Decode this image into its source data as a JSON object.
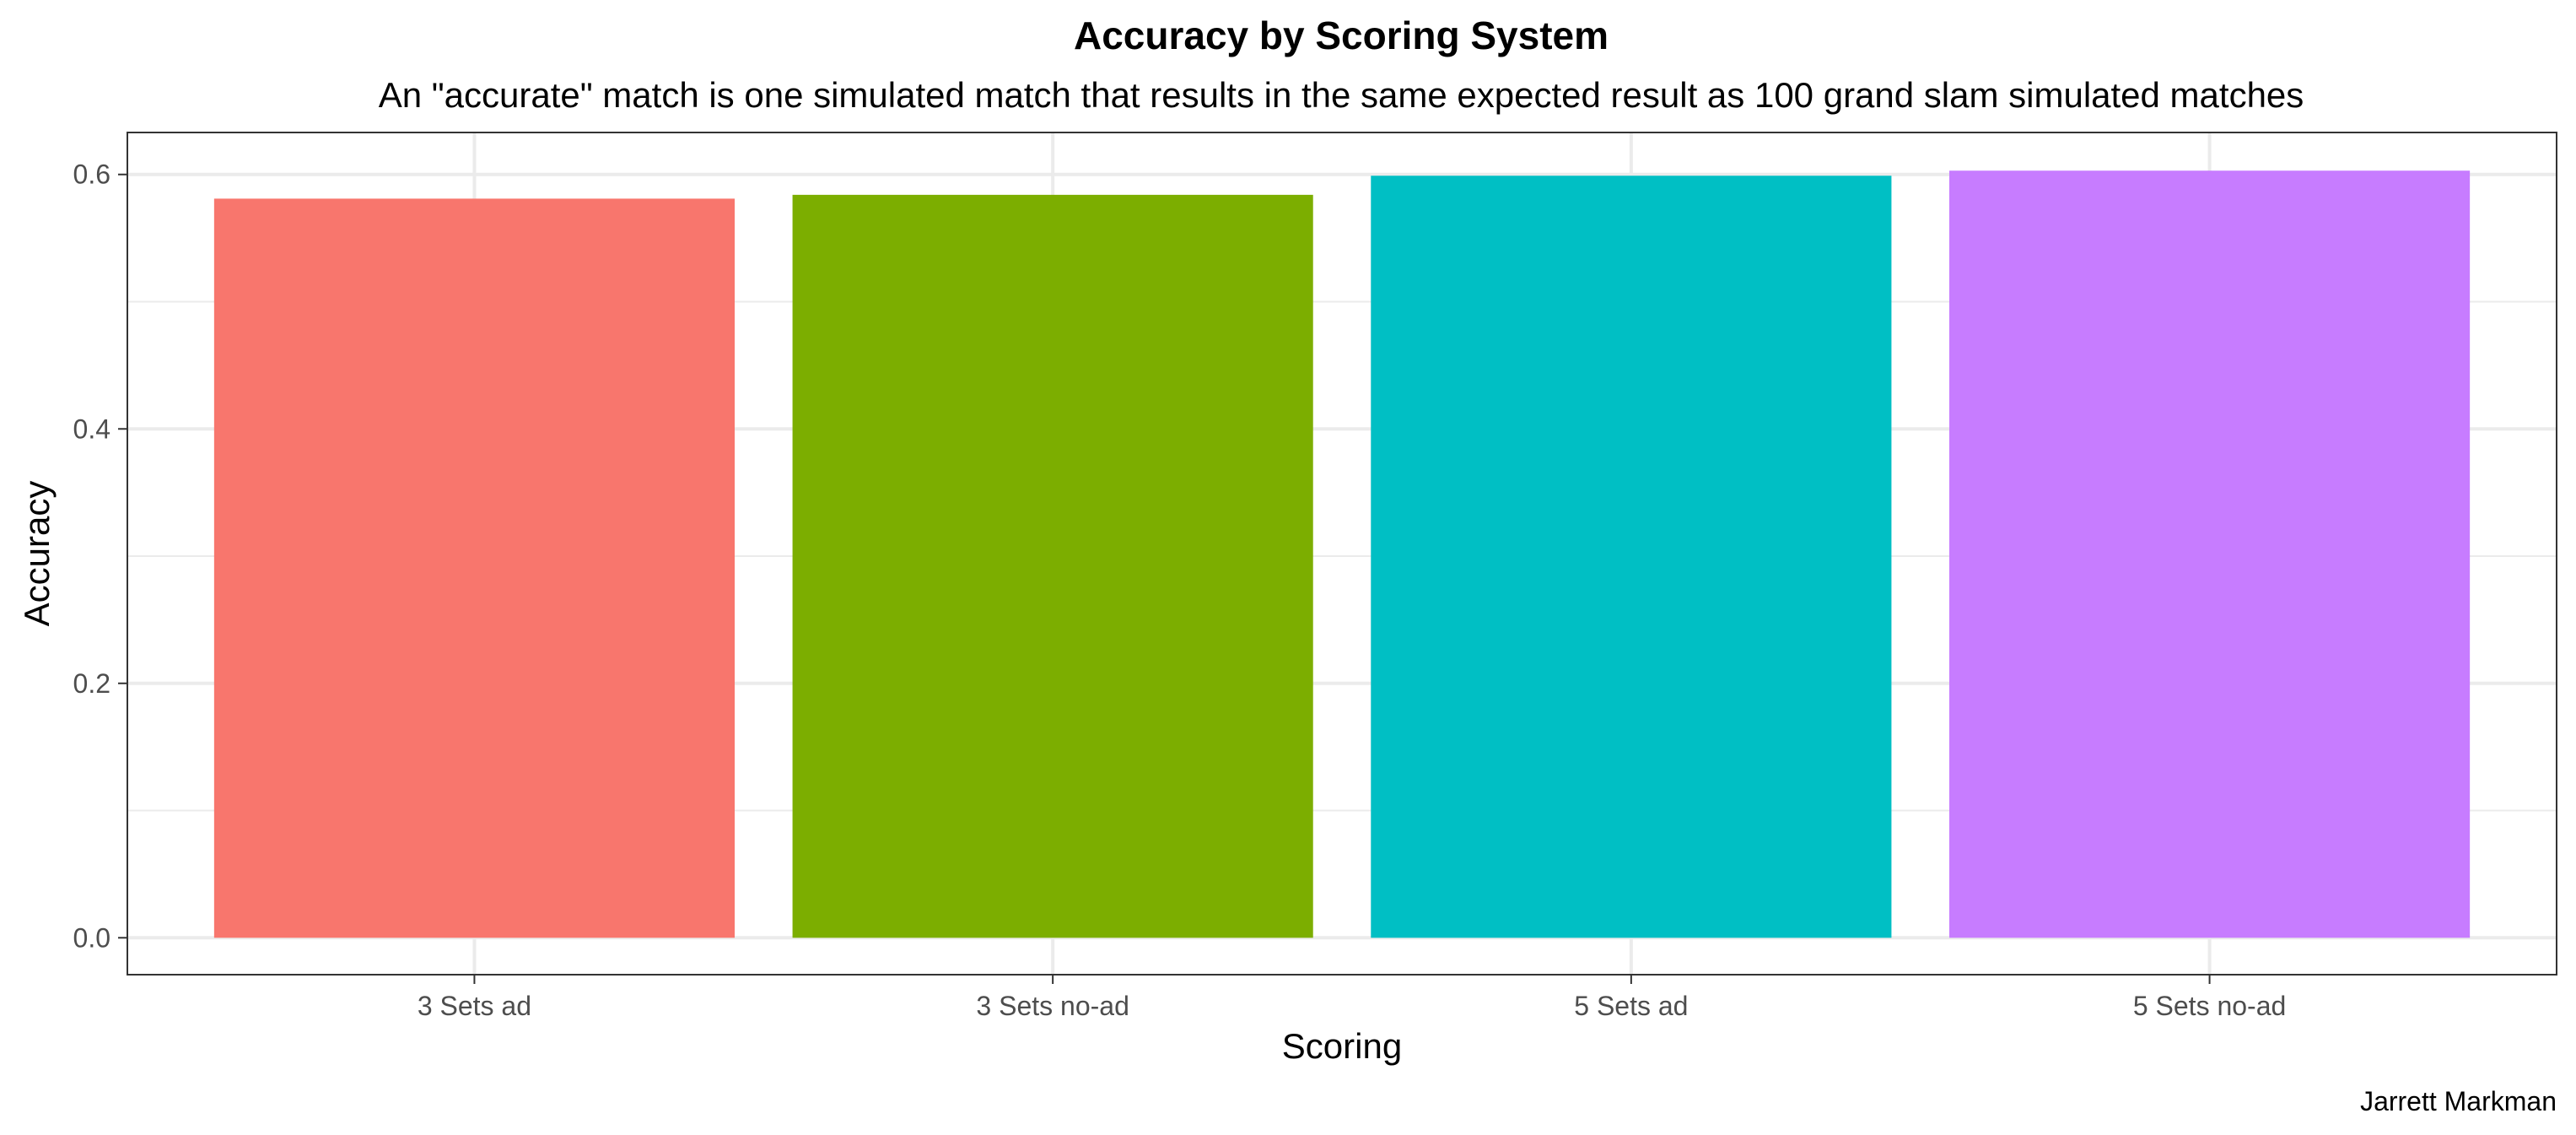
{
  "chart_data": {
    "type": "bar",
    "title": "Accuracy by Scoring System",
    "subtitle": "An \"accurate\" match is one simulated match that results in the same expected result as 100 grand slam simulated matches",
    "xlabel": "Scoring",
    "ylabel": "Accuracy",
    "caption": "Jarrett Markman",
    "categories": [
      "3 Sets ad",
      "3 Sets no-ad",
      "5 Sets ad",
      "5 Sets no-ad"
    ],
    "values": [
      0.581,
      0.584,
      0.599,
      0.603
    ],
    "colors": [
      "#F8766D",
      "#7CAE00",
      "#00BFC4",
      "#C77CFF"
    ],
    "ylim": [
      -0.029,
      0.633
    ],
    "yticks": [
      0.0,
      0.2,
      0.4,
      0.6
    ],
    "ytick_labels": [
      "0.0",
      "0.2",
      "0.4",
      "0.6"
    ],
    "grid": true,
    "legend": "none"
  }
}
